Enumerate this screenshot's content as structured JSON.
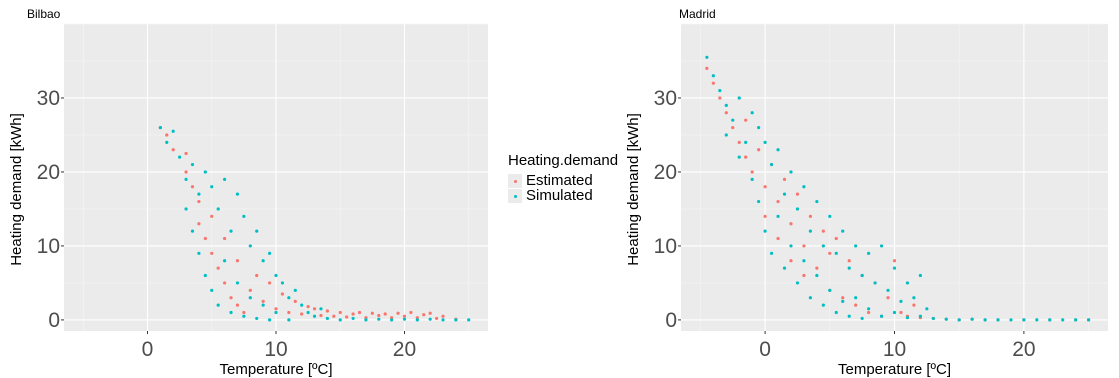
{
  "legend": {
    "title": "Heating.demand",
    "items": [
      {
        "label": "Estimated",
        "color": "#F8766D"
      },
      {
        "label": "Simulated",
        "color": "#00BFC4"
      }
    ]
  },
  "chart_data": [
    {
      "type": "scatter",
      "title": "Bilbao",
      "xlabel": "Temperature [ºC]",
      "ylabel": "Heating demand [kWh]",
      "xlim": [
        -6.5,
        26.5
      ],
      "ylim": [
        -1.5,
        40
      ],
      "xticks": [
        0,
        10,
        20
      ],
      "yticks": [
        0,
        10,
        20,
        30
      ],
      "grid": true,
      "legend_position": "right",
      "series": [
        {
          "name": "Estimated",
          "color": "#F8766D",
          "points": [
            [
              1.0,
              26.0
            ],
            [
              1.5,
              25.0
            ],
            [
              2.0,
              23.0
            ],
            [
              3.0,
              22.5
            ],
            [
              3.0,
              20.0
            ],
            [
              3.5,
              18.0
            ],
            [
              4.0,
              16.0
            ],
            [
              4.0,
              13.0
            ],
            [
              4.5,
              11.0
            ],
            [
              5.0,
              9.0
            ],
            [
              5.0,
              14.0
            ],
            [
              5.5,
              7.0
            ],
            [
              6.0,
              5.0
            ],
            [
              6.0,
              11.0
            ],
            [
              6.5,
              3.0
            ],
            [
              7.0,
              2.0
            ],
            [
              7.0,
              8.0
            ],
            [
              7.5,
              1.0
            ],
            [
              8.0,
              4.0
            ],
            [
              8.5,
              6.0
            ],
            [
              9.0,
              2.5
            ],
            [
              9.5,
              5.0
            ],
            [
              10.0,
              1.5
            ],
            [
              10.5,
              3.5
            ],
            [
              11.0,
              1.0
            ],
            [
              11.5,
              2.5
            ],
            [
              12.0,
              0.8
            ],
            [
              12.5,
              1.8
            ],
            [
              13.0,
              1.5
            ],
            [
              13.5,
              0.6
            ],
            [
              14.0,
              1.2
            ],
            [
              14.5,
              0.5
            ],
            [
              15.0,
              1.0
            ],
            [
              15.5,
              0.4
            ],
            [
              16.0,
              0.8
            ],
            [
              16.5,
              1.0
            ],
            [
              17.0,
              0.3
            ],
            [
              17.5,
              0.9
            ],
            [
              18.0,
              0.6
            ],
            [
              18.5,
              0.8
            ],
            [
              19.0,
              0.3
            ],
            [
              19.5,
              0.9
            ],
            [
              20.0,
              0.5
            ],
            [
              20.5,
              1.0
            ],
            [
              21.0,
              0.3
            ],
            [
              21.5,
              0.7
            ],
            [
              22.0,
              0.9
            ],
            [
              22.5,
              0.2
            ],
            [
              23.0,
              0.5
            ],
            [
              24.0,
              0.1
            ]
          ]
        },
        {
          "name": "Simulated",
          "color": "#00BFC4",
          "points": [
            [
              1.0,
              26.0
            ],
            [
              1.5,
              24.0
            ],
            [
              2.0,
              25.5
            ],
            [
              2.5,
              22.0
            ],
            [
              3.0,
              19.0
            ],
            [
              3.0,
              15.0
            ],
            [
              3.5,
              21.0
            ],
            [
              3.5,
              12.0
            ],
            [
              4.0,
              17.0
            ],
            [
              4.0,
              9.0
            ],
            [
              4.5,
              20.0
            ],
            [
              4.5,
              6.0
            ],
            [
              5.0,
              18.0
            ],
            [
              5.0,
              4.0
            ],
            [
              5.5,
              15.0
            ],
            [
              5.5,
              2.0
            ],
            [
              6.0,
              19.0
            ],
            [
              6.0,
              8.0
            ],
            [
              6.5,
              12.0
            ],
            [
              6.5,
              1.0
            ],
            [
              7.0,
              17.0
            ],
            [
              7.0,
              5.0
            ],
            [
              7.5,
              14.0
            ],
            [
              7.5,
              0.5
            ],
            [
              8.0,
              10.0
            ],
            [
              8.0,
              3.0
            ],
            [
              8.5,
              12.0
            ],
            [
              8.5,
              0.2
            ],
            [
              9.0,
              8.0
            ],
            [
              9.0,
              2.0
            ],
            [
              9.5,
              9.0
            ],
            [
              9.5,
              0.0
            ],
            [
              10.0,
              6.0
            ],
            [
              10.0,
              1.0
            ],
            [
              10.5,
              5.0
            ],
            [
              11.0,
              3.0
            ],
            [
              11.0,
              0.0
            ],
            [
              11.5,
              4.0
            ],
            [
              12.0,
              2.0
            ],
            [
              12.5,
              1.0
            ],
            [
              13.0,
              0.5
            ],
            [
              13.5,
              1.5
            ],
            [
              14.0,
              0.2
            ],
            [
              15.0,
              0.0
            ],
            [
              16.0,
              0.2
            ],
            [
              17.0,
              0.0
            ],
            [
              18.0,
              0.1
            ],
            [
              19.0,
              0.0
            ],
            [
              20.0,
              0.1
            ],
            [
              21.0,
              0.0
            ],
            [
              22.0,
              0.1
            ],
            [
              23.0,
              0.0
            ],
            [
              24.0,
              0.0
            ],
            [
              25.0,
              0.0
            ]
          ]
        }
      ]
    },
    {
      "type": "scatter",
      "title": "Madrid",
      "xlabel": "Temperature [ºC]",
      "ylabel": "Heating demand [kWh]",
      "xlim": [
        -6.5,
        26.5
      ],
      "ylim": [
        -1.5,
        40
      ],
      "xticks": [
        0,
        10,
        20
      ],
      "yticks": [
        0,
        10,
        20,
        30
      ],
      "grid": true,
      "series": [
        {
          "name": "Estimated",
          "color": "#F8766D",
          "points": [
            [
              -4.5,
              34.0
            ],
            [
              -4.0,
              32.0
            ],
            [
              -3.5,
              30.0
            ],
            [
              -3.0,
              28.0
            ],
            [
              -2.5,
              26.0
            ],
            [
              -2.0,
              24.0
            ],
            [
              -1.5,
              27.0
            ],
            [
              -1.5,
              22.0
            ],
            [
              -1.0,
              20.0
            ],
            [
              -0.5,
              23.0
            ],
            [
              0.0,
              18.0
            ],
            [
              0.0,
              14.0
            ],
            [
              0.5,
              21.0
            ],
            [
              1.0,
              16.0
            ],
            [
              1.0,
              11.0
            ],
            [
              1.5,
              19.0
            ],
            [
              2.0,
              13.0
            ],
            [
              2.0,
              8.0
            ],
            [
              2.5,
              17.0
            ],
            [
              3.0,
              10.0
            ],
            [
              3.0,
              6.0
            ],
            [
              3.5,
              14.0
            ],
            [
              4.0,
              7.0
            ],
            [
              4.5,
              12.0
            ],
            [
              5.0,
              4.0
            ],
            [
              5.0,
              9.0
            ],
            [
              5.5,
              11.0
            ],
            [
              6.0,
              3.0
            ],
            [
              6.5,
              8.0
            ],
            [
              7.0,
              2.0
            ],
            [
              7.5,
              6.0
            ],
            [
              8.0,
              1.0
            ],
            [
              8.5,
              5.0
            ],
            [
              9.0,
              0.5
            ],
            [
              9.5,
              3.0
            ],
            [
              10.0,
              8.0
            ],
            [
              10.5,
              1.0
            ],
            [
              11.0,
              0.5
            ],
            [
              11.5,
              2.0
            ],
            [
              12.0,
              0.3
            ],
            [
              13.0,
              0.2
            ],
            [
              14.0,
              0.1
            ],
            [
              15.0,
              0.0
            ],
            [
              16.0,
              0.1
            ],
            [
              17.0,
              0.0
            ],
            [
              18.0,
              0.0
            ],
            [
              20.0,
              0.0
            ],
            [
              22.0,
              0.0
            ],
            [
              24.0,
              0.0
            ],
            [
              25.0,
              0.0
            ]
          ]
        },
        {
          "name": "Simulated",
          "color": "#00BFC4",
          "points": [
            [
              -4.5,
              35.5
            ],
            [
              -4.0,
              33.0
            ],
            [
              -3.5,
              31.0
            ],
            [
              -3.0,
              29.0
            ],
            [
              -3.0,
              25.0
            ],
            [
              -2.5,
              27.0
            ],
            [
              -2.0,
              30.0
            ],
            [
              -2.0,
              22.0
            ],
            [
              -1.5,
              24.0
            ],
            [
              -1.0,
              28.0
            ],
            [
              -1.0,
              19.0
            ],
            [
              -0.5,
              26.0
            ],
            [
              -0.5,
              16.0
            ],
            [
              0.0,
              24.0
            ],
            [
              0.0,
              12.0
            ],
            [
              0.5,
              21.0
            ],
            [
              0.5,
              9.0
            ],
            [
              1.0,
              23.0
            ],
            [
              1.0,
              14.0
            ],
            [
              1.5,
              17.0
            ],
            [
              1.5,
              7.0
            ],
            [
              2.0,
              20.0
            ],
            [
              2.0,
              10.0
            ],
            [
              2.5,
              15.0
            ],
            [
              2.5,
              5.0
            ],
            [
              3.0,
              18.0
            ],
            [
              3.0,
              8.0
            ],
            [
              3.5,
              12.0
            ],
            [
              3.5,
              3.0
            ],
            [
              4.0,
              16.0
            ],
            [
              4.0,
              6.0
            ],
            [
              4.5,
              10.0
            ],
            [
              4.5,
              2.0
            ],
            [
              5.0,
              14.0
            ],
            [
              5.0,
              4.0
            ],
            [
              5.5,
              9.0
            ],
            [
              5.5,
              1.0
            ],
            [
              6.0,
              12.0
            ],
            [
              6.0,
              2.5
            ],
            [
              6.5,
              7.0
            ],
            [
              6.5,
              0.5
            ],
            [
              7.0,
              10.0
            ],
            [
              7.0,
              3.0
            ],
            [
              7.5,
              6.0
            ],
            [
              7.5,
              0.2
            ],
            [
              8.0,
              9.0
            ],
            [
              8.0,
              1.5
            ],
            [
              8.5,
              5.0
            ],
            [
              9.0,
              10.0
            ],
            [
              9.0,
              0.5
            ],
            [
              9.5,
              4.0
            ],
            [
              10.0,
              7.0
            ],
            [
              10.0,
              1.0
            ],
            [
              10.5,
              2.5
            ],
            [
              11.0,
              5.0
            ],
            [
              11.0,
              0.3
            ],
            [
              11.5,
              3.0
            ],
            [
              12.0,
              6.0
            ],
            [
              12.0,
              0.5
            ],
            [
              12.5,
              1.5
            ],
            [
              13.0,
              0.2
            ],
            [
              14.0,
              0.1
            ],
            [
              15.0,
              0.0
            ],
            [
              16.0,
              0.1
            ],
            [
              17.0,
              0.0
            ],
            [
              18.0,
              0.0
            ],
            [
              19.0,
              0.0
            ],
            [
              20.0,
              0.0
            ],
            [
              21.0,
              0.0
            ],
            [
              22.0,
              0.0
            ],
            [
              23.0,
              0.0
            ],
            [
              24.0,
              0.0
            ],
            [
              25.0,
              0.0
            ]
          ]
        }
      ]
    }
  ]
}
